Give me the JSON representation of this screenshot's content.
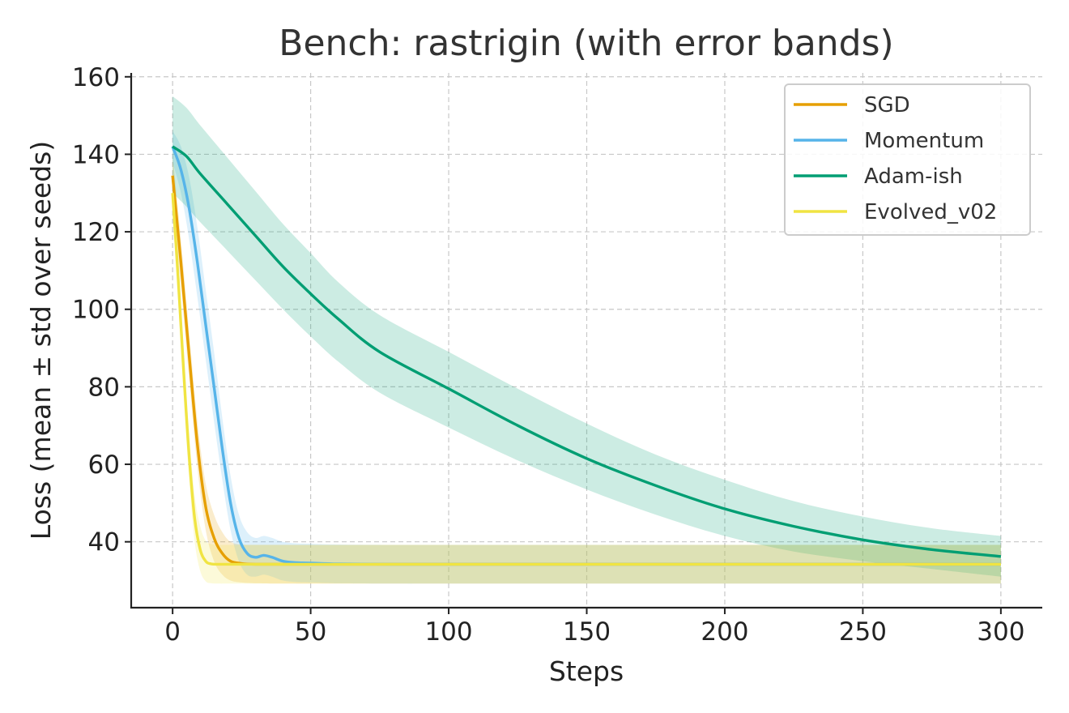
{
  "chart_data": {
    "type": "line",
    "title": "Bench: rastrigin (with error bands)",
    "xlabel": "Steps",
    "ylabel": "Loss (mean ± std over seeds)",
    "xlim": [
      -15,
      315
    ],
    "ylim": [
      23,
      161
    ],
    "xticks": [
      0,
      50,
      100,
      150,
      200,
      250,
      300
    ],
    "yticks": [
      40,
      60,
      80,
      100,
      120,
      140,
      160
    ],
    "grid": true,
    "legend_position": "top-right",
    "series": [
      {
        "name": "SGD",
        "color": "#E69F00",
        "x": [
          0,
          3,
          6,
          9,
          12,
          15,
          18,
          21,
          25,
          30,
          40,
          60,
          100,
          150,
          200,
          250,
          300
        ],
        "y": [
          134.5,
          112,
          88,
          65,
          49,
          41,
          37,
          35,
          34.4,
          34.2,
          34.2,
          34.2,
          34.2,
          34.2,
          34.2,
          34.2,
          34.2
        ],
        "lower": [
          129,
          106,
          82,
          59,
          43,
          35,
          31.5,
          30,
          29.5,
          29.3,
          29.2,
          29.2,
          29.2,
          29.2,
          29.2,
          29.2,
          29.2
        ],
        "upper": [
          140,
          118,
          94,
          71,
          55,
          47,
          42.5,
          40,
          39.3,
          39.2,
          39.2,
          39.2,
          39.2,
          39.2,
          39.2,
          39.2,
          39.2
        ]
      },
      {
        "name": "Momentum",
        "color": "#56B4E9",
        "x": [
          0,
          3,
          6,
          9,
          12,
          15,
          18,
          21,
          24,
          27,
          30,
          33,
          36,
          40,
          45,
          50,
          60,
          80,
          100,
          150,
          200,
          250,
          300
        ],
        "y": [
          142,
          136,
          126,
          112,
          96,
          80,
          64,
          50,
          41,
          37,
          36,
          36.5,
          36,
          35,
          34.6,
          34.5,
          34.3,
          34.2,
          34.2,
          34.2,
          34.2,
          34.2,
          34.2
        ],
        "lower": [
          138,
          130,
          118,
          103,
          87,
          71,
          56,
          43,
          35,
          31.5,
          31,
          31.5,
          31,
          30,
          29.6,
          29.5,
          29.3,
          29.2,
          29.2,
          29.2,
          29.2,
          29.2,
          29.2
        ],
        "upper": [
          146,
          142,
          134,
          121,
          105,
          89,
          72,
          57,
          47,
          42.5,
          41,
          41.5,
          41,
          40,
          39.6,
          39.5,
          39.3,
          39.2,
          39.2,
          39.2,
          39.2,
          39.2,
          39.2
        ]
      },
      {
        "name": "Adam-ish",
        "color": "#009E73",
        "x": [
          0,
          5,
          10,
          20,
          30,
          40,
          50,
          60,
          75,
          100,
          125,
          150,
          175,
          200,
          225,
          250,
          275,
          300
        ],
        "y": [
          142,
          139.5,
          135,
          127,
          119,
          111,
          104,
          97.5,
          89,
          79.5,
          70,
          61.5,
          54.5,
          48.5,
          44,
          40.5,
          38,
          36.2
        ],
        "lower": [
          130,
          126.5,
          122.5,
          115,
          107.5,
          100,
          93,
          86.5,
          78.5,
          69.5,
          61,
          53.5,
          47,
          41.5,
          37.5,
          35,
          33,
          31
        ],
        "upper": [
          155,
          152,
          147.5,
          139,
          130.5,
          122,
          114.5,
          107,
          98.5,
          89,
          79.5,
          70.5,
          62.5,
          56,
          50.5,
          46.5,
          43.5,
          41.5
        ]
      },
      {
        "name": "Evolved_v02",
        "color": "#F0E442",
        "x": [
          0,
          2,
          4,
          6,
          8,
          10,
          12,
          14,
          17,
          20,
          30,
          60,
          100,
          150,
          200,
          250,
          300
        ],
        "y": [
          130,
          108,
          84,
          62,
          46,
          38,
          35,
          34.3,
          34.2,
          34.2,
          34.2,
          34.2,
          34.2,
          34.2,
          34.2,
          34.2,
          34.2
        ],
        "lower": [
          125,
          102,
          78,
          56,
          40,
          32.5,
          29.8,
          29.3,
          29.2,
          29.2,
          29.2,
          29.2,
          29.2,
          29.2,
          29.2,
          29.2,
          29.2
        ],
        "upper": [
          135,
          114,
          90,
          68,
          52,
          44,
          40.3,
          39.4,
          39.2,
          39.2,
          39.2,
          39.2,
          39.2,
          39.2,
          39.2,
          39.2,
          39.2
        ]
      }
    ]
  }
}
